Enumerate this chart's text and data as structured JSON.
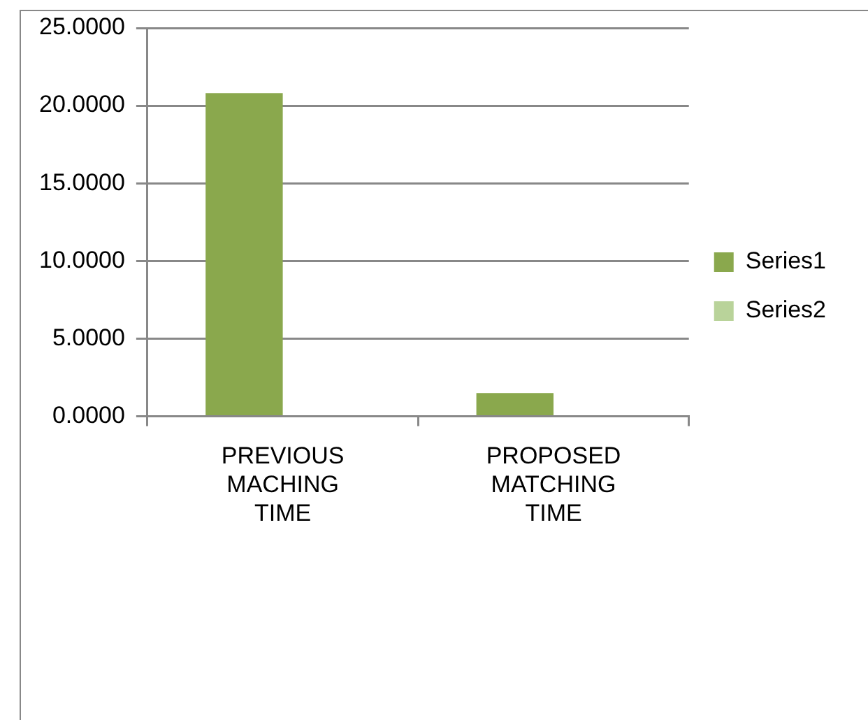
{
  "chart_data": {
    "type": "bar",
    "categories": [
      "PREVIOUS MACHING TIME",
      "PROPOSED MATCHING TIME"
    ],
    "series": [
      {
        "name": "Series1",
        "color": "#8aa84d",
        "values": [
          20.8,
          1.5
        ]
      },
      {
        "name": "Series2",
        "color": "#b9d39a",
        "values": [
          null,
          null
        ]
      }
    ],
    "ylim": [
      0,
      25
    ],
    "yticks": [
      {
        "value": 0,
        "label": "0.0000"
      },
      {
        "value": 5,
        "label": "5.0000"
      },
      {
        "value": 10,
        "label": "10.0000"
      },
      {
        "value": 15,
        "label": "15.0000"
      },
      {
        "value": 20,
        "label": "20.0000"
      },
      {
        "value": 25,
        "label": "25.0000"
      }
    ],
    "grid": "y",
    "legend": "right"
  }
}
